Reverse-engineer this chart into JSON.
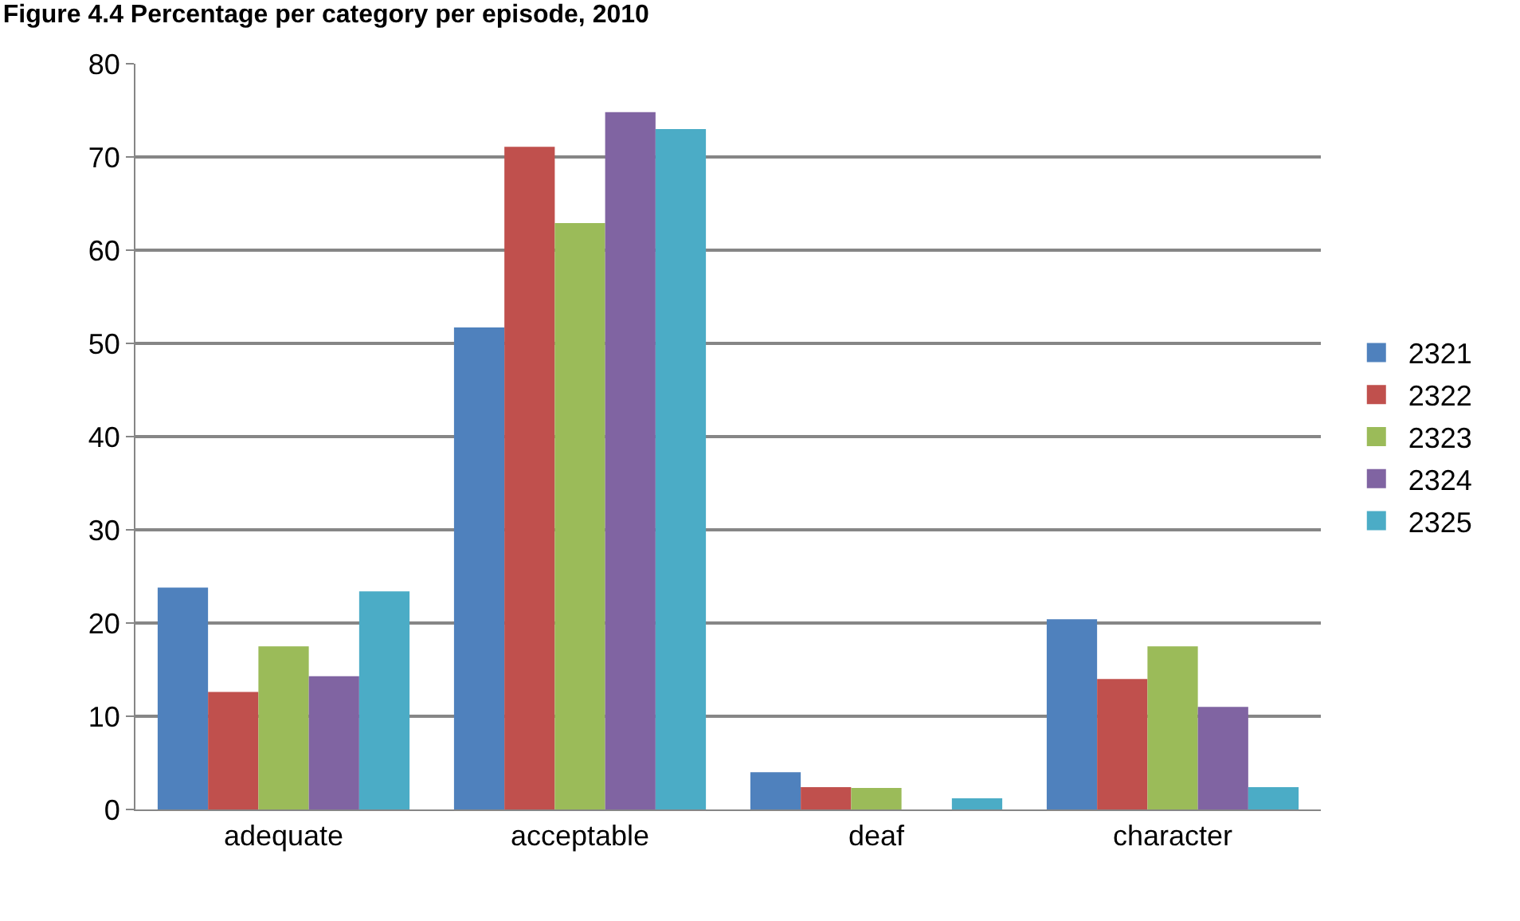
{
  "chart_data": {
    "type": "bar",
    "title": "Figure 4.4 Percentage per category per episode, 2010",
    "categories": [
      "adequate",
      "acceptable",
      "deaf",
      "character"
    ],
    "series": [
      {
        "name": "2321",
        "color": "#4f81bd",
        "values": [
          23.8,
          51.7,
          4.0,
          20.4
        ]
      },
      {
        "name": "2322",
        "color": "#c0504d",
        "values": [
          12.6,
          71.1,
          2.4,
          14.0
        ]
      },
      {
        "name": "2323",
        "color": "#9bbb59",
        "values": [
          17.5,
          62.9,
          2.3,
          17.5
        ]
      },
      {
        "name": "2324",
        "color": "#8064a2",
        "values": [
          14.3,
          74.8,
          0,
          11.0
        ]
      },
      {
        "name": "2325",
        "color": "#4bacc6",
        "values": [
          23.4,
          73.0,
          1.2,
          2.4
        ]
      }
    ],
    "ylim": [
      0,
      80
    ],
    "yticks": [
      0,
      10,
      20,
      30,
      40,
      50,
      60,
      70,
      80
    ],
    "grid": "y",
    "legend": "right"
  }
}
